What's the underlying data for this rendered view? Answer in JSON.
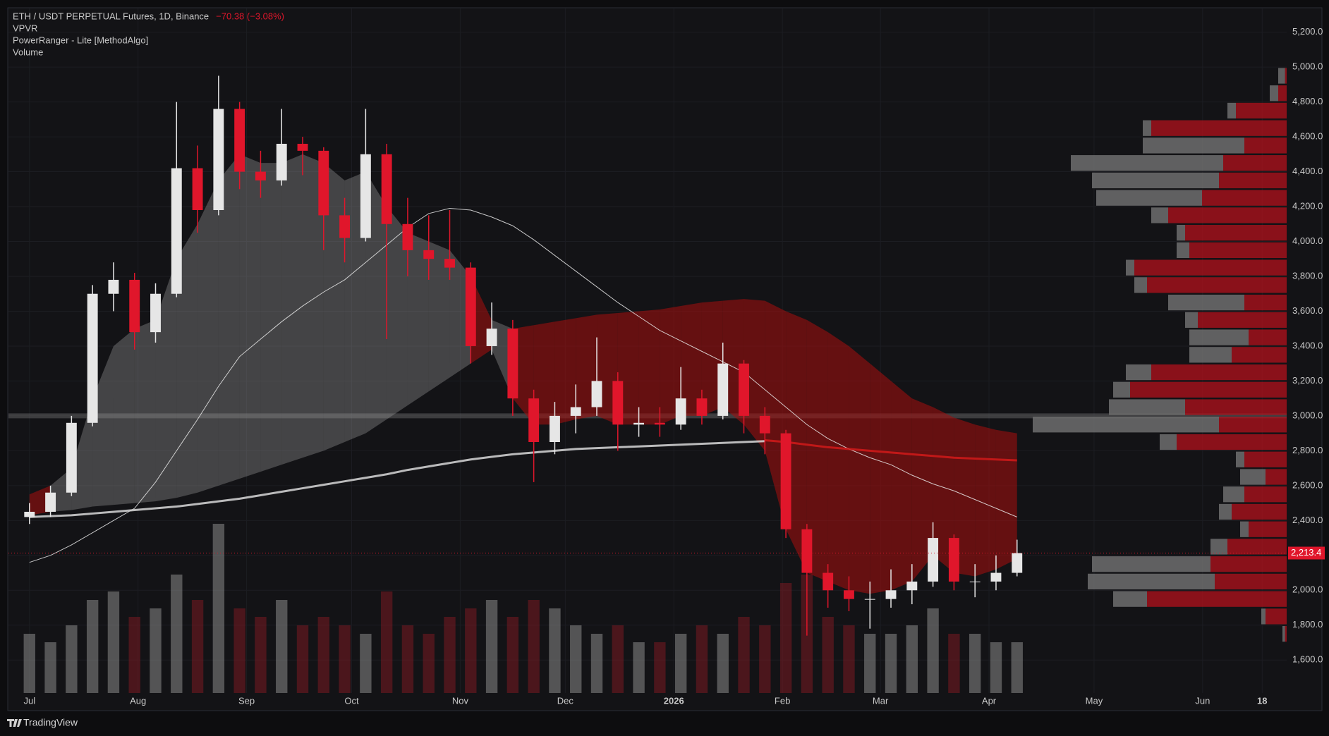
{
  "chart_data": {
    "type": "candlestick",
    "title": "ETH / USDT PERPETUAL Futures, 1D, Binance",
    "change": "−70.38 (−3.08%)",
    "indicators": [
      "VPVR",
      "PowerRanger - Lite [MethodAlgo]",
      "Volume"
    ],
    "footer": "TradingView",
    "x": [
      0,
      6,
      12,
      18,
      24,
      30,
      36,
      42,
      48,
      54,
      60,
      66,
      72,
      78,
      84,
      90,
      96,
      102,
      108,
      114,
      120,
      126,
      132,
      138,
      144,
      150,
      156,
      162,
      168,
      174,
      180,
      186,
      192,
      198,
      204,
      210,
      216,
      222,
      228,
      234,
      240,
      246,
      252,
      258,
      264,
      270,
      276,
      282
    ],
    "open": [
      2420,
      2450,
      2560,
      2960,
      3700,
      3780,
      3480,
      3700,
      4420,
      4180,
      4760,
      4400,
      4350,
      4560,
      4520,
      4150,
      4020,
      4500,
      4100,
      3950,
      3900,
      3850,
      3400,
      3500,
      3100,
      2850,
      3000,
      3050,
      3200,
      2950,
      2960,
      2950,
      3100,
      3000,
      3300,
      3000,
      2900,
      2350,
      2100,
      2000,
      1950,
      1950,
      2000,
      2050,
      2300,
      2050,
      2050,
      2100
    ],
    "high": [
      2500,
      2600,
      3000,
      3750,
      3880,
      3820,
      3760,
      4800,
      4550,
      4950,
      4800,
      4520,
      4760,
      4600,
      4540,
      4250,
      4760,
      4560,
      4250,
      4150,
      4180,
      3880,
      3650,
      3550,
      3150,
      3080,
      3180,
      3450,
      3250,
      3050,
      3050,
      3280,
      3150,
      3420,
      3320,
      3050,
      2920,
      2380,
      2150,
      2080,
      2050,
      2120,
      2150,
      2390,
      2320,
      2150,
      2200,
      2290
    ],
    "low": [
      2380,
      2420,
      2540,
      2940,
      3600,
      3380,
      3420,
      3680,
      4050,
      4150,
      4300,
      4250,
      4320,
      4380,
      3950,
      3880,
      4000,
      3440,
      3800,
      3780,
      3780,
      3300,
      3350,
      3000,
      2620,
      2780,
      2900,
      3000,
      2800,
      2880,
      2880,
      2920,
      2950,
      2980,
      2900,
      2780,
      2300,
      1740,
      1900,
      1880,
      1780,
      1900,
      1920,
      2020,
      2000,
      1960,
      2000,
      2080
    ],
    "close": [
      2450,
      2560,
      2960,
      3700,
      3780,
      3480,
      3700,
      4420,
      4180,
      4760,
      4400,
      4350,
      4560,
      4520,
      4150,
      4020,
      4500,
      4100,
      3950,
      3900,
      3850,
      3400,
      3500,
      3100,
      2850,
      3000,
      3050,
      3200,
      2950,
      2960,
      2950,
      3100,
      3000,
      3300,
      3000,
      2900,
      2350,
      2100,
      2000,
      1950,
      1950,
      2000,
      2050,
      2300,
      2050,
      2050,
      2100,
      2213.4
    ],
    "volume": [
      35,
      30,
      40,
      55,
      60,
      45,
      50,
      70,
      55,
      100,
      50,
      45,
      55,
      40,
      45,
      40,
      35,
      60,
      40,
      35,
      45,
      50,
      55,
      45,
      55,
      50,
      40,
      35,
      40,
      30,
      30,
      35,
      40,
      35,
      45,
      40,
      65,
      70,
      45,
      40,
      35,
      35,
      40,
      50,
      35,
      35,
      30,
      30
    ],
    "band": {
      "upper": [
        2550,
        2600,
        2700,
        3100,
        3400,
        3500,
        3550,
        3900,
        4100,
        4350,
        4500,
        4450,
        4450,
        4500,
        4450,
        4350,
        4400,
        4200,
        4050,
        4000,
        3950,
        3800,
        3550,
        3500,
        3520,
        3540,
        3560,
        3580,
        3590,
        3600,
        3610,
        3630,
        3650,
        3660,
        3670,
        3660,
        3600,
        3550,
        3480,
        3400,
        3300,
        3200,
        3100,
        3050,
        2990,
        2950,
        2920,
        2900
      ],
      "lower": [
        2430,
        2450,
        2460,
        2480,
        2490,
        2500,
        2510,
        2530,
        2560,
        2600,
        2640,
        2680,
        2720,
        2760,
        2800,
        2850,
        2900,
        2980,
        3060,
        3140,
        3220,
        3300,
        3380,
        3100,
        2950,
        2950,
        2980,
        3000,
        2950,
        2950,
        2950,
        3000,
        3000,
        3050,
        2950,
        2800,
        2350,
        2100,
        2050,
        2000,
        1980,
        2000,
        2050,
        2200,
        2100,
        2080,
        2120,
        2180
      ],
      "colors": [
        "#a0a0a0",
        "#9c0f0f"
      ]
    },
    "overlays": [
      {
        "color": "#e8e8e8",
        "width": 1,
        "values": [
          2160,
          2200,
          2260,
          2330,
          2400,
          2470,
          2620,
          2800,
          2980,
          3170,
          3340,
          3440,
          3540,
          3630,
          3710,
          3780,
          3880,
          3980,
          4080,
          4160,
          4190,
          4180,
          4140,
          4090,
          4010,
          3920,
          3830,
          3740,
          3650,
          3570,
          3490,
          3430,
          3370,
          3310,
          3250,
          3150,
          3050,
          2950,
          2870,
          2810,
          2760,
          2720,
          2660,
          2610,
          2570,
          2520,
          2470,
          2420
        ]
      },
      {
        "color": "#d8d8d8",
        "width": 3,
        "values": [
          2420,
          2425,
          2430,
          2440,
          2450,
          2460,
          2470,
          2480,
          2495,
          2510,
          2525,
          2545,
          2565,
          2585,
          2605,
          2625,
          2645,
          2665,
          2690,
          2710,
          2730,
          2750,
          2765,
          2780,
          2790,
          2800,
          2810,
          2815,
          2820,
          2825,
          2830,
          2835,
          2840,
          2845,
          2850,
          2855,
          null,
          null,
          null,
          null,
          null,
          null,
          null,
          null,
          null,
          null,
          null,
          null
        ]
      },
      {
        "color": "#d11a1a",
        "width": 3,
        "values": [
          null,
          null,
          null,
          null,
          null,
          null,
          null,
          null,
          null,
          null,
          null,
          null,
          null,
          null,
          null,
          null,
          null,
          null,
          null,
          null,
          null,
          null,
          null,
          null,
          null,
          null,
          null,
          null,
          null,
          null,
          null,
          null,
          null,
          null,
          null,
          2860,
          2850,
          2835,
          2820,
          2810,
          2800,
          2790,
          2780,
          2770,
          2760,
          2755,
          2750,
          2745
        ]
      }
    ],
    "poc": 3000,
    "last_price_label": "2,213.4",
    "volume_profile": {
      "levels": [
        1750,
        1850,
        1950,
        2050,
        2150,
        2250,
        2350,
        2450,
        2550,
        2650,
        2750,
        2850,
        2950,
        3050,
        3150,
        3250,
        3350,
        3450,
        3550,
        3650,
        3750,
        3850,
        3950,
        4050,
        4150,
        4250,
        4350,
        4450,
        4550,
        4650,
        4750,
        4850,
        4950
      ],
      "up": [
        3,
        5,
        40,
        150,
        140,
        20,
        10,
        15,
        25,
        30,
        10,
        20,
        220,
        90,
        20,
        30,
        50,
        70,
        15,
        90,
        15,
        10,
        15,
        10,
        20,
        125,
        150,
        180,
        120,
        10,
        10,
        10,
        8
      ],
      "down": [
        2,
        25,
        165,
        85,
        90,
        70,
        45,
        65,
        50,
        25,
        50,
        130,
        80,
        120,
        185,
        160,
        65,
        45,
        105,
        50,
        165,
        180,
        115,
        120,
        140,
        100,
        80,
        75,
        50,
        160,
        60,
        10,
        2
      ],
      "colors": [
        "#6e6e6e",
        "#b3121c"
      ]
    },
    "up_color": "#e6e6e6",
    "down_color": "#e0162b",
    "xlim": [
      -6,
      359
    ],
    "ylim": [
      1411,
      5336
    ],
    "xticks": [
      {
        "value": 0,
        "label": "Jul"
      },
      {
        "value": 31,
        "label": "Aug"
      },
      {
        "value": 62,
        "label": "Sep"
      },
      {
        "value": 92,
        "label": "Oct"
      },
      {
        "value": 123,
        "label": "Nov"
      },
      {
        "value": 153,
        "label": "Dec"
      },
      {
        "value": 184,
        "label": "2026"
      },
      {
        "value": 215,
        "label": "Feb"
      },
      {
        "value": 243,
        "label": "Mar"
      },
      {
        "value": 274,
        "label": "Apr"
      },
      {
        "value": 304,
        "label": "May"
      },
      {
        "value": 335,
        "label": "Jun"
      },
      {
        "value": 352,
        "label": "18"
      }
    ],
    "yticks": [
      {
        "value": 1600,
        "label": "1,600.0"
      },
      {
        "value": 1800,
        "label": "1,800.0"
      },
      {
        "value": 2000,
        "label": "2,000.0"
      },
      {
        "value": 2200,
        "label": "2,200.0"
      },
      {
        "value": 2400,
        "label": "2,400.0"
      },
      {
        "value": 2600,
        "label": "2,600.0"
      },
      {
        "value": 2800,
        "label": "2,800.0"
      },
      {
        "value": 3000,
        "label": "3,000.0"
      },
      {
        "value": 3200,
        "label": "3,200.0"
      },
      {
        "value": 3400,
        "label": "3,400.0"
      },
      {
        "value": 3600,
        "label": "3,600.0"
      },
      {
        "value": 3800,
        "label": "3,800.0"
      },
      {
        "value": 4000,
        "label": "4,000.0"
      },
      {
        "value": 4200,
        "label": "4,200.0"
      },
      {
        "value": 4400,
        "label": "4,400.0"
      },
      {
        "value": 4600,
        "label": "4,600.0"
      },
      {
        "value": 4800,
        "label": "4,800.0"
      },
      {
        "value": 5000,
        "label": "5,000.0"
      },
      {
        "value": 5200,
        "label": "5,200.0"
      }
    ],
    "grid": true
  }
}
